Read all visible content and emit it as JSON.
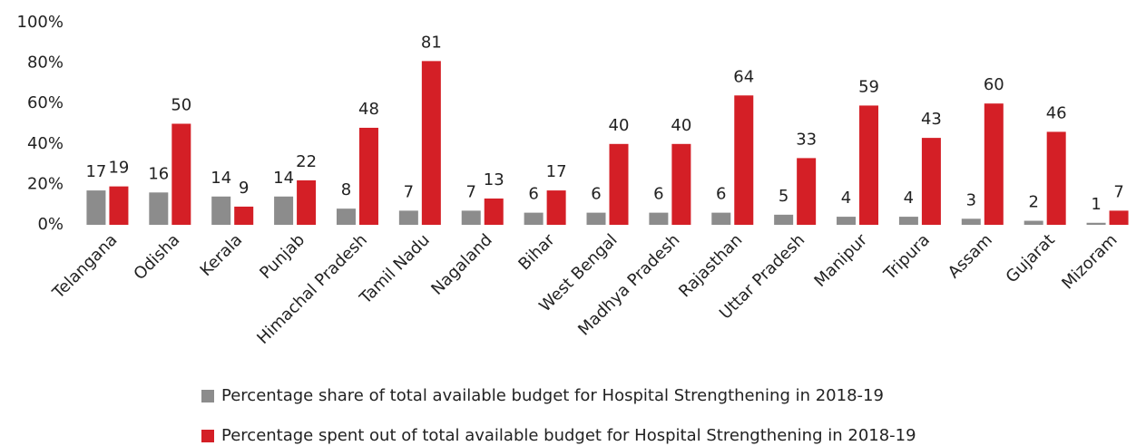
{
  "chart_data": {
    "type": "bar",
    "categories": [
      "Telangana",
      "Odisha",
      "Kerala",
      "Punjab",
      "Himachal Pradesh",
      "Tamil Nadu",
      "Nagaland",
      "Bihar",
      "West Bengal",
      "Madhya Pradesh",
      "Rajasthan",
      "Uttar Pradesh",
      "Manipur",
      "Tripura",
      "Assam",
      "Gujarat",
      "Mizoram"
    ],
    "series": [
      {
        "name": "Percentage share of total available budget for Hospital Strengthening in 2018-19",
        "color": "#8c8c8c",
        "values": [
          17,
          16,
          14,
          14,
          8,
          7,
          7,
          6,
          6,
          6,
          6,
          5,
          4,
          4,
          3,
          2,
          1
        ]
      },
      {
        "name": "Percentage spent out of total available budget for Hospital Strengthening in 2018-19",
        "color": "#d41f26",
        "values": [
          19,
          50,
          9,
          22,
          48,
          81,
          13,
          17,
          40,
          40,
          64,
          33,
          59,
          43,
          60,
          46,
          7
        ]
      }
    ],
    "ylim": [
      0,
      100
    ],
    "yticks": [
      {
        "value": 0,
        "label": "0%"
      },
      {
        "value": 20,
        "label": "20%"
      },
      {
        "value": 40,
        "label": "40%"
      },
      {
        "value": 60,
        "label": "60%"
      },
      {
        "value": 80,
        "label": "80%"
      },
      {
        "value": 100,
        "label": "100%"
      }
    ],
    "grid": false,
    "legend": "bottom"
  }
}
